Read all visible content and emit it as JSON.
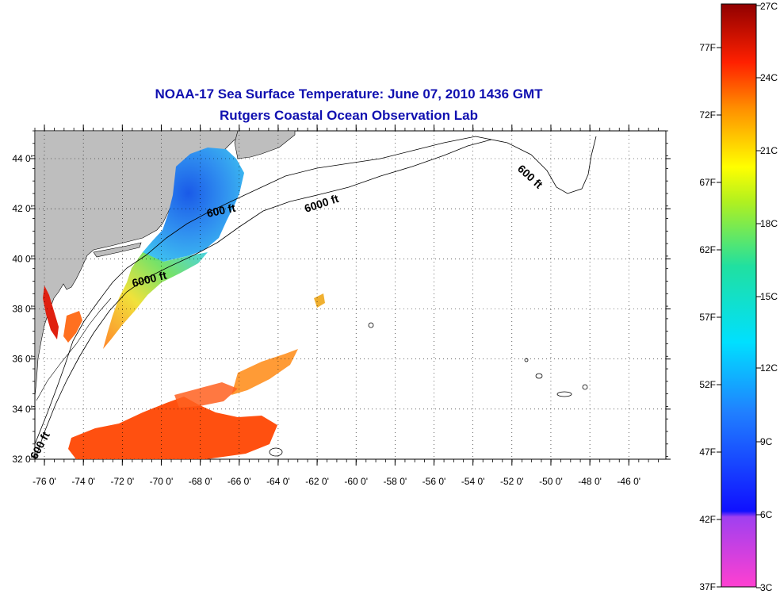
{
  "title": "NOAA-17 Sea Surface Temperature:  June 07, 2010 1436 GMT",
  "subtitle": "Rutgers Coastal Ocean Observation Lab",
  "lat_ticks": [
    "44 0'",
    "42 0'",
    "40 0'",
    "38 0'",
    "36 0'",
    "34 0'",
    "32 0'"
  ],
  "lon_ticks": [
    "-76 0'",
    "-74 0'",
    "-72 0'",
    "-70 0'",
    "-68 0'",
    "-66 0'",
    "-64 0'",
    "-62 0'",
    "-60 0'",
    "-58 0'",
    "-56 0'",
    "-54 0'",
    "-52 0'",
    "-50 0'",
    "-48 0'",
    "-46 0'"
  ],
  "contour_labels": [
    "600 ft",
    "6000 ft",
    "600 ft",
    "6000 ft",
    "600 ft"
  ],
  "colorbar": {
    "celsius": [
      "27C",
      "24C",
      "21C",
      "18C",
      "15C",
      "12C",
      "9C",
      "6C",
      "3C"
    ],
    "fahrenheit": [
      "77F",
      "72F",
      "67F",
      "62F",
      "57F",
      "52F",
      "47F",
      "42F",
      "37F"
    ]
  },
  "colors": {
    "land": "#bebebe",
    "title": "#1010b0",
    "cold": "#2a5ff0",
    "cool": "#35b8f0",
    "warm": "#ffd020",
    "hot": "#ff2a10"
  }
}
